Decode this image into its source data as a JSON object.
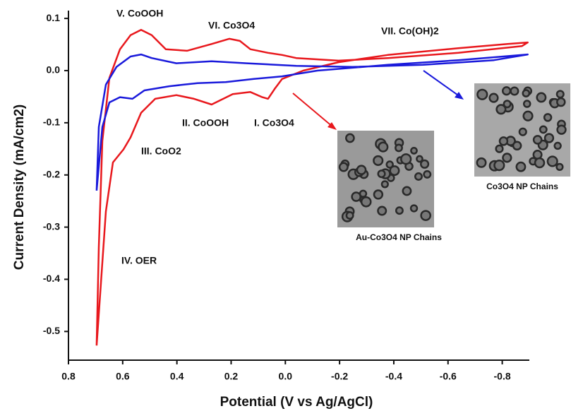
{
  "chart_data": {
    "type": "line",
    "xlabel": "Potential (V vs Ag/AgCl)",
    "ylabel": "Current Density (mA/cm2)",
    "xlim": [
      0.8,
      -0.9
    ],
    "xticks": [
      0.8,
      0.6,
      0.4,
      0.2,
      {
        "value": 0,
        "label": "0.0"
      },
      -0.2,
      -0.4,
      -0.6,
      -0.8
    ],
    "ylim": [
      -0.555,
      0.115
    ],
    "yticks": [
      0.1,
      {
        "value": 0,
        "label": "0.0"
      },
      -0.1,
      -0.2,
      -0.3,
      -0.4,
      -0.5
    ],
    "annotations": [
      "V. CoOOH",
      "VI. Co3O4",
      "VII. Co(OH)2",
      "II. CoOOH",
      "I. Co3O4",
      "III. CoO2",
      "IV. OER"
    ],
    "series": [
      {
        "name": "Au-Co3O4 NP Chains",
        "color": "#e8181d",
        "x": [
          0.696,
          0.662,
          0.636,
          0.597,
          0.571,
          0.532,
          0.48,
          0.402,
          0.337,
          0.272,
          0.194,
          0.129,
          0.085,
          0.064,
          0.038,
          0.012,
          -0.066,
          -0.196,
          -0.378,
          -0.638,
          -0.82,
          -0.894,
          -0.873,
          -0.638,
          -0.378,
          -0.196,
          -0.04,
          0.012,
          0.064,
          0.129,
          0.168,
          0.207,
          0.272,
          0.363,
          0.441,
          0.493,
          0.532,
          0.571,
          0.61,
          0.649,
          0.675,
          0.688,
          0.696
        ],
        "values": [
          -0.527,
          -0.27,
          -0.176,
          -0.151,
          -0.128,
          -0.081,
          -0.054,
          -0.047,
          -0.054,
          -0.065,
          -0.045,
          -0.041,
          -0.051,
          -0.054,
          -0.034,
          -0.016,
          0,
          0.016,
          0.03,
          0.043,
          0.051,
          0.054,
          0.047,
          0.034,
          0.024,
          0.019,
          0.024,
          0.03,
          0.034,
          0.041,
          0.057,
          0.061,
          0.051,
          0.038,
          0.041,
          0.068,
          0.078,
          0.068,
          0.041,
          -0.014,
          -0.135,
          -0.338,
          -0.527
        ]
      },
      {
        "name": "Co3O4 NP Chains",
        "color": "#1a1adb",
        "x": [
          0.696,
          0.675,
          0.649,
          0.61,
          0.564,
          0.52,
          0.428,
          0.324,
          0.22,
          0.116,
          0.012,
          -0.118,
          -0.378,
          -0.638,
          -0.894,
          -0.769,
          -0.508,
          -0.248,
          -0.04,
          0.142,
          0.272,
          0.402,
          0.493,
          0.532,
          0.571,
          0.623,
          0.662,
          0.688,
          0.696
        ],
        "values": [
          -0.23,
          -0.108,
          -0.061,
          -0.051,
          -0.054,
          -0.038,
          -0.03,
          -0.024,
          -0.022,
          -0.016,
          -0.011,
          0,
          0.011,
          0.02,
          0.031,
          0.02,
          0.011,
          0.007,
          0.009,
          0.014,
          0.018,
          0.014,
          0.024,
          0.031,
          0.027,
          0.007,
          -0.027,
          -0.108,
          -0.23
        ]
      }
    ]
  }
}
